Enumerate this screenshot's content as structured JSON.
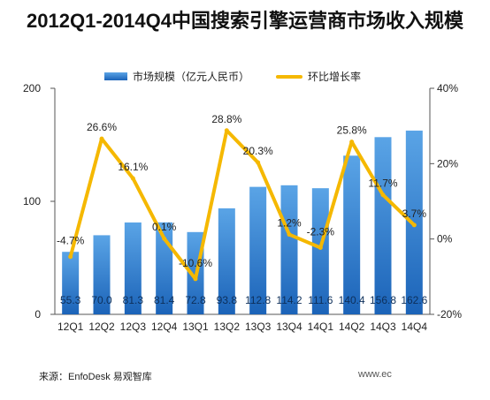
{
  "chart_data": {
    "type": "bar",
    "title": "2012Q1-2014Q4中国搜索引擎运营商市场收入规模",
    "categories": [
      "12Q1",
      "12Q2",
      "12Q3",
      "12Q4",
      "13Q1",
      "13Q2",
      "13Q3",
      "13Q4",
      "14Q1",
      "14Q2",
      "14Q3",
      "14Q4"
    ],
    "series": [
      {
        "name": "市场规模（亿元人民币）",
        "type": "bar",
        "axis": "left",
        "values": [
          55.3,
          70.0,
          81.3,
          81.4,
          72.8,
          93.8,
          112.8,
          114.2,
          111.6,
          140.4,
          156.8,
          162.6
        ],
        "labels": [
          "55.3",
          "70.0",
          "81.3",
          "81.4",
          "72.8",
          "93.8",
          "112.8",
          "114.2",
          "111.6",
          "140.4",
          "156.8",
          "162.6"
        ]
      },
      {
        "name": "环比增长率",
        "type": "line",
        "axis": "right",
        "values": [
          -4.7,
          26.6,
          16.1,
          0.1,
          -10.6,
          28.8,
          20.3,
          1.2,
          -2.3,
          25.8,
          11.7,
          3.7
        ],
        "labels": [
          "-4.7%",
          "26.6%",
          "16.1%",
          "0.1%",
          "-10.6%",
          "28.8%",
          "20.3%",
          "1.2%",
          "-2.3%",
          "25.8%",
          "11.7%",
          "3.7%"
        ]
      }
    ],
    "ylim_left": [
      0,
      200
    ],
    "yticks_left": [
      "0",
      "100",
      "200"
    ],
    "ylim_right": [
      -20,
      40
    ],
    "yticks_right": [
      "-20%",
      "0%",
      "20%",
      "40%"
    ],
    "legend_position": "top",
    "colors": {
      "bar_top": "#5aa4e6",
      "bar_bottom": "#1b63b8",
      "line": "#f5b800"
    }
  },
  "source": "来源：EnfoDesk 易观智库",
  "footer_right": "www.ec"
}
